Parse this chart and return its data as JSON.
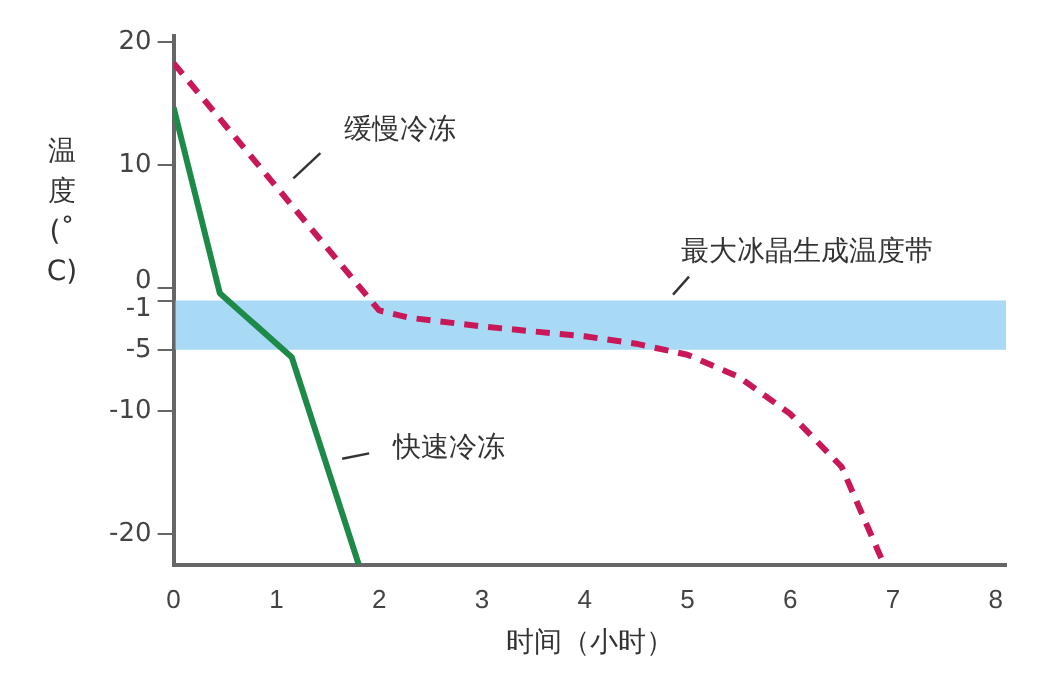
{
  "chart_data": {
    "type": "line",
    "xlabel": "时间（小时）",
    "ylabel": "温度(˚C)",
    "xlim": [
      0,
      8.1
    ],
    "xticks": [
      0,
      1,
      2,
      3,
      4,
      5,
      6,
      7,
      8
    ],
    "ylim": [
      -22.5,
      20.5
    ],
    "yticks": [
      20,
      10,
      0,
      -1,
      -5,
      -10,
      -20
    ],
    "series": [
      {
        "name": "缓慢冷冻",
        "color": "#c8185a",
        "line_style": "dashed",
        "x": [
          0,
          2,
          2.3,
          3,
          4,
          4.5,
          5,
          5.5,
          6,
          6.5,
          6.9
        ],
        "values": [
          18.3,
          -1.8,
          -2.4,
          -3.1,
          -3.9,
          -4.5,
          -5.4,
          -7.2,
          -10.2,
          -14.5,
          -22.2
        ]
      },
      {
        "name": "快速冷冻",
        "color": "#1e8a4a",
        "line_style": "solid",
        "x": [
          0,
          0.45,
          1.15,
          1.8
        ],
        "values": [
          14.7,
          -0.4,
          -5.6,
          -22.4
        ]
      }
    ],
    "bands": [
      {
        "axis": "y",
        "from": -1,
        "to": -5,
        "label": "最大冰晶生成温度带",
        "color": "#a8daf5"
      }
    ],
    "grid": false,
    "legend": false,
    "marker": "none"
  }
}
